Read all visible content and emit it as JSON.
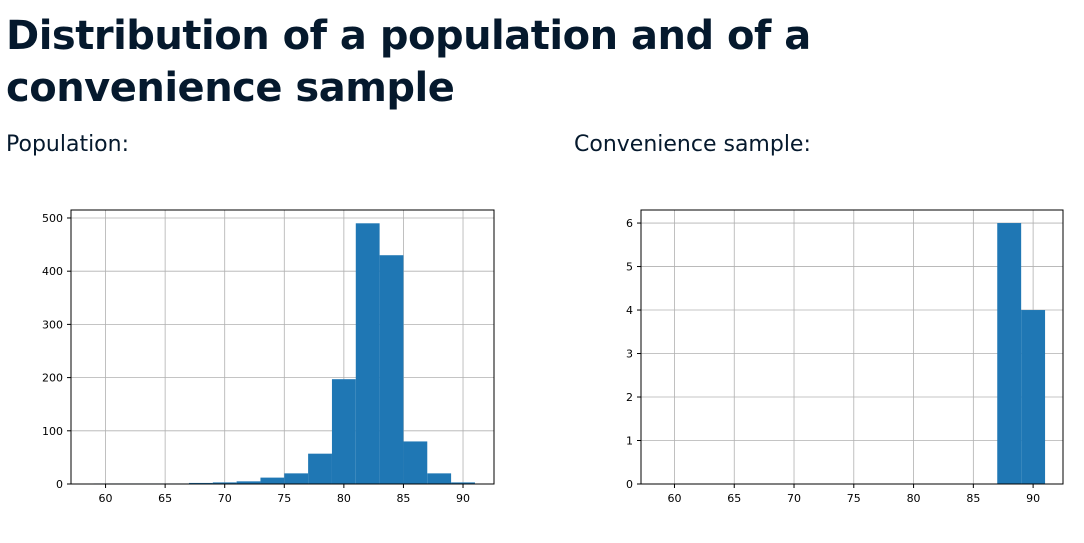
{
  "page": {
    "title": "Distribution of a population and of a convenience sample",
    "population_label": "Population:",
    "sample_label": "Convenience sample:"
  },
  "colors": {
    "bar": "#1f77b4",
    "grid": "#b0b0b0",
    "title": "#05192d"
  },
  "chart_data": [
    {
      "type": "bar",
      "name": "population-histogram",
      "bin_edges": [
        59,
        61,
        63,
        65,
        67,
        69,
        71,
        73,
        75,
        77,
        79,
        81,
        83,
        85,
        87,
        89,
        91
      ],
      "values": [
        1,
        1,
        1,
        1,
        2,
        3,
        5,
        12,
        20,
        57,
        197,
        490,
        430,
        80,
        20,
        3
      ],
      "xlim": [
        57.1,
        92.6
      ],
      "ylim": [
        0,
        515
      ],
      "xticks": [
        60,
        65,
        70,
        75,
        80,
        85,
        90
      ],
      "yticks": [
        0,
        100,
        200,
        300,
        400,
        500
      ],
      "grid": true
    },
    {
      "type": "bar",
      "name": "sample-histogram",
      "bin_edges": [
        87,
        89,
        91
      ],
      "values": [
        6,
        4
      ],
      "xlim": [
        57.2,
        92.5
      ],
      "ylim": [
        0,
        6.3
      ],
      "xticks": [
        60,
        65,
        70,
        75,
        80,
        85,
        90
      ],
      "yticks": [
        0,
        1,
        2,
        3,
        4,
        5,
        6
      ],
      "grid": true
    }
  ]
}
